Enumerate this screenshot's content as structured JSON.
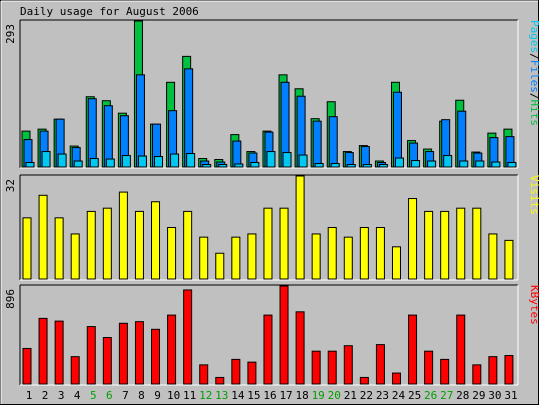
{
  "title": "Daily usage for August 2006",
  "colors": {
    "hits": "#00C040",
    "files": "#0080FF",
    "pages": "#00C8F0",
    "visits": "#FFFF00",
    "kbytes": "#FF0000",
    "panel_bg": "#C0C0C0",
    "weekday_label": "#000000",
    "weekend_label": "#00A000"
  },
  "chart_data": [
    {
      "type": "bar",
      "panel": "hits-files-pages",
      "title": "Daily usage for August 2006",
      "y_max_label": "293",
      "ylim": [
        0,
        293
      ],
      "legend": {
        "position": "right",
        "entries": [
          "Pages",
          "Files",
          "Hits"
        ],
        "separator": "/"
      },
      "categories": [
        "1",
        "2",
        "3",
        "4",
        "5",
        "6",
        "7",
        "8",
        "9",
        "10",
        "11",
        "12",
        "13",
        "14",
        "15",
        "16",
        "17",
        "18",
        "19",
        "20",
        "21",
        "22",
        "23",
        "24",
        "25",
        "26",
        "27",
        "28",
        "29",
        "30",
        "31"
      ],
      "weekend_days": [
        "5",
        "6",
        "12",
        "13",
        "19",
        "20",
        "26",
        "27"
      ],
      "series": [
        {
          "name": "Hits",
          "values": [
            72,
            76,
            96,
            42,
            141,
            133,
            108,
            293,
            86,
            170,
            222,
            17,
            15,
            65,
            31,
            72,
            185,
            157,
            97,
            131,
            31,
            43,
            12,
            170,
            53,
            36,
            92,
            134,
            30,
            68,
            76
          ]
        },
        {
          "name": "Files",
          "values": [
            55,
            72,
            96,
            39,
            137,
            123,
            103,
            185,
            86,
            113,
            197,
            12,
            10,
            52,
            28,
            70,
            170,
            142,
            92,
            101,
            29,
            41,
            9,
            150,
            48,
            31,
            95,
            112,
            28,
            59,
            61
          ]
        },
        {
          "name": "Pages",
          "values": [
            9,
            31,
            26,
            12,
            17,
            16,
            23,
            22,
            21,
            26,
            27,
            5,
            5,
            6,
            9,
            31,
            29,
            24,
            7,
            7,
            5,
            5,
            5,
            18,
            13,
            12,
            23,
            12,
            12,
            10,
            9
          ]
        }
      ]
    },
    {
      "type": "bar",
      "panel": "visits",
      "y_max_label": "32",
      "ylim": [
        0,
        32
      ],
      "legend": {
        "position": "right",
        "entries": [
          "Visits"
        ]
      },
      "categories": [
        "1",
        "2",
        "3",
        "4",
        "5",
        "6",
        "7",
        "8",
        "9",
        "10",
        "11",
        "12",
        "13",
        "14",
        "15",
        "16",
        "17",
        "18",
        "19",
        "20",
        "21",
        "22",
        "23",
        "24",
        "25",
        "26",
        "27",
        "28",
        "29",
        "30",
        "31"
      ],
      "series": [
        {
          "name": "Visits",
          "values": [
            19,
            26,
            19,
            14,
            21,
            22,
            27,
            21,
            24,
            16,
            21,
            13,
            8,
            13,
            14,
            22,
            22,
            32,
            14,
            16,
            13,
            16,
            16,
            10,
            25,
            21,
            21,
            22,
            22,
            14,
            12
          ]
        }
      ]
    },
    {
      "type": "bar",
      "panel": "kbytes",
      "y_max_label": "896",
      "ylim": [
        0,
        896
      ],
      "legend": {
        "position": "right",
        "entries": [
          "KBytes"
        ]
      },
      "categories": [
        "1",
        "2",
        "3",
        "4",
        "5",
        "6",
        "7",
        "8",
        "9",
        "10",
        "11",
        "12",
        "13",
        "14",
        "15",
        "16",
        "17",
        "18",
        "19",
        "20",
        "21",
        "22",
        "23",
        "24",
        "25",
        "26",
        "27",
        "28",
        "29",
        "30",
        "31"
      ],
      "series": [
        {
          "name": "KBytes",
          "values": [
            325,
            600,
            575,
            250,
            525,
            425,
            555,
            570,
            500,
            630,
            860,
            175,
            60,
            225,
            200,
            630,
            900,
            660,
            300,
            300,
            350,
            60,
            360,
            100,
            630,
            300,
            225,
            630,
            175,
            250,
            260
          ]
        }
      ]
    }
  ]
}
